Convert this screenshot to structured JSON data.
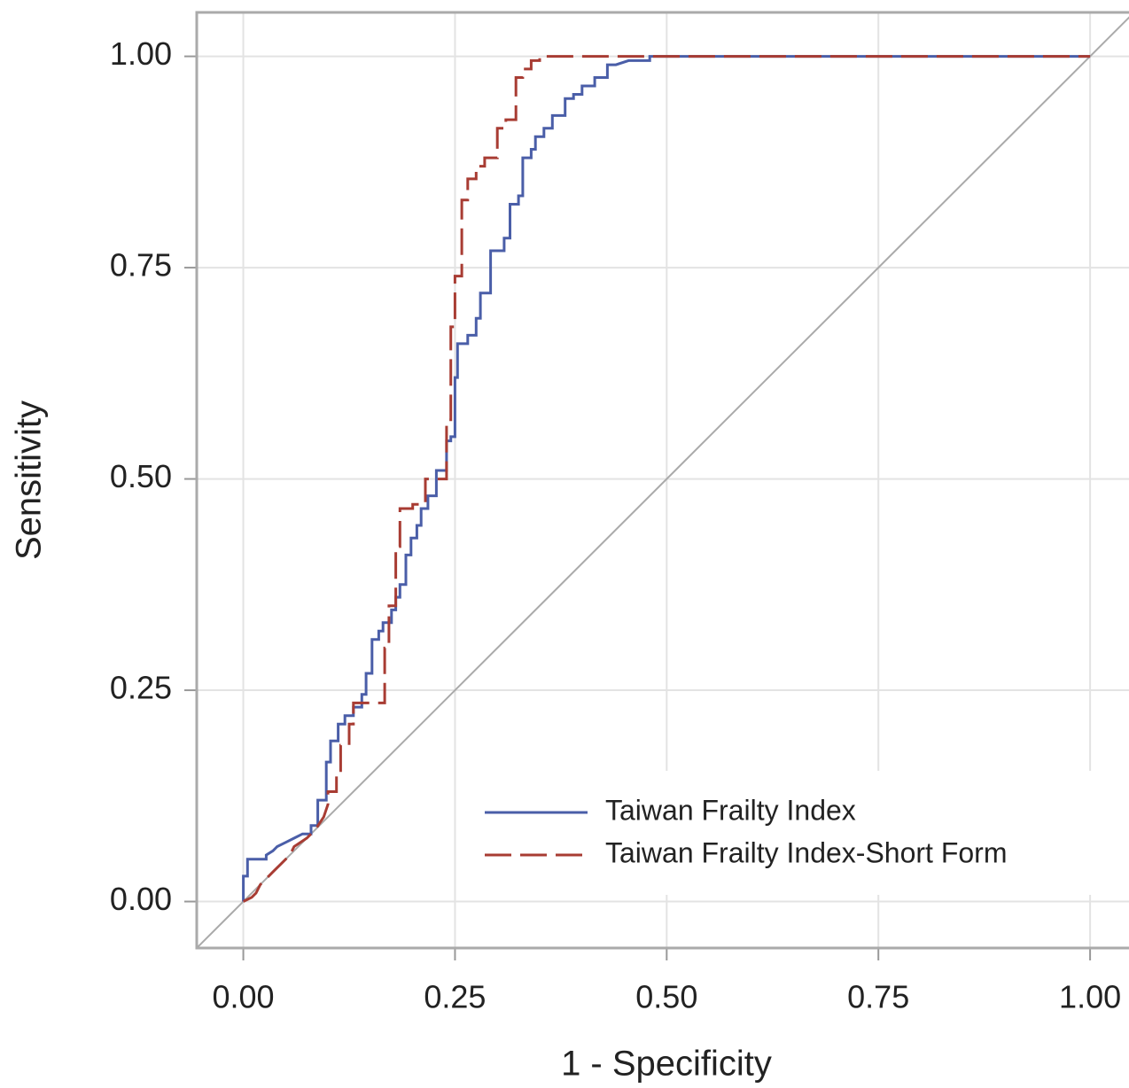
{
  "chart_data": {
    "type": "line",
    "xlabel": "1 - Specificity",
    "ylabel": "Sensitivity",
    "xlim": [
      -0.055,
      1.047
    ],
    "ylim": [
      -0.055,
      1.052
    ],
    "xticks": [
      {
        "value": 0,
        "label": "0.00"
      },
      {
        "value": 0.25,
        "label": "0.25"
      },
      {
        "value": 0.5,
        "label": "0.50"
      },
      {
        "value": 0.75,
        "label": "0.75"
      },
      {
        "value": 1,
        "label": "1.00"
      }
    ],
    "yticks": [
      {
        "value": 0,
        "label": "0.00"
      },
      {
        "value": 0.25,
        "label": "0.25"
      },
      {
        "value": 0.5,
        "label": "0.50"
      },
      {
        "value": 0.75,
        "label": "0.75"
      },
      {
        "value": 1,
        "label": "1.00"
      }
    ],
    "grid": true,
    "diagonal": true,
    "legend": "lower right",
    "series": [
      {
        "name": "Taiwan Frailty Index",
        "color": "#4a5ea8",
        "dash": "solid",
        "x": [
          0,
          0,
          0.005,
          0.005,
          0.027,
          0.027,
          0.035,
          0.04,
          0.05,
          0.06,
          0.07,
          0.08,
          0.08,
          0.088,
          0.088,
          0.098,
          0.098,
          0.103,
          0.103,
          0.112,
          0.112,
          0.12,
          0.12,
          0.13,
          0.13,
          0.14,
          0.14,
          0.145,
          0.145,
          0.152,
          0.152,
          0.16,
          0.16,
          0.165,
          0.165,
          0.175,
          0.175,
          0.18,
          0.18,
          0.185,
          0.185,
          0.192,
          0.192,
          0.198,
          0.198,
          0.205,
          0.205,
          0.21,
          0.21,
          0.218,
          0.218,
          0.228,
          0.228,
          0.24,
          0.24,
          0.245,
          0.245,
          0.25,
          0.25,
          0.253,
          0.253,
          0.265,
          0.265,
          0.275,
          0.275,
          0.28,
          0.28,
          0.292,
          0.292,
          0.308,
          0.308,
          0.315,
          0.315,
          0.325,
          0.325,
          0.33,
          0.33,
          0.34,
          0.34,
          0.345,
          0.345,
          0.355,
          0.355,
          0.365,
          0.365,
          0.38,
          0.38,
          0.39,
          0.39,
          0.4,
          0.4,
          0.415,
          0.415,
          0.43,
          0.43,
          0.44,
          0.455,
          0.48,
          0.48,
          1
        ],
        "values": [
          0,
          0.03,
          0.03,
          0.05,
          0.05,
          0.055,
          0.06,
          0.065,
          0.07,
          0.075,
          0.08,
          0.08,
          0.09,
          0.09,
          0.12,
          0.12,
          0.165,
          0.165,
          0.19,
          0.19,
          0.21,
          0.21,
          0.22,
          0.22,
          0.23,
          0.23,
          0.245,
          0.245,
          0.27,
          0.27,
          0.31,
          0.31,
          0.32,
          0.32,
          0.33,
          0.33,
          0.345,
          0.345,
          0.36,
          0.36,
          0.375,
          0.375,
          0.41,
          0.41,
          0.43,
          0.43,
          0.445,
          0.445,
          0.465,
          0.465,
          0.48,
          0.48,
          0.51,
          0.51,
          0.545,
          0.545,
          0.55,
          0.55,
          0.62,
          0.62,
          0.66,
          0.66,
          0.67,
          0.67,
          0.69,
          0.69,
          0.72,
          0.72,
          0.77,
          0.77,
          0.785,
          0.785,
          0.825,
          0.825,
          0.835,
          0.835,
          0.88,
          0.88,
          0.89,
          0.89,
          0.905,
          0.905,
          0.915,
          0.915,
          0.93,
          0.93,
          0.95,
          0.95,
          0.955,
          0.955,
          0.965,
          0.965,
          0.975,
          0.975,
          0.99,
          0.99,
          0.995,
          0.995,
          1,
          1
        ]
      },
      {
        "name": "Taiwan Frailty Index-Short Form",
        "color": "#a83c33",
        "dash": "dashed",
        "x": [
          0,
          0.01,
          0.015,
          0.02,
          0.03,
          0.035,
          0.045,
          0.055,
          0.06,
          0.075,
          0.085,
          0.095,
          0.1,
          0.1,
          0.11,
          0.11,
          0.115,
          0.115,
          0.125,
          0.125,
          0.13,
          0.13,
          0.167,
          0.167,
          0.172,
          0.172,
          0.18,
          0.18,
          0.185,
          0.185,
          0.2,
          0.2,
          0.215,
          0.215,
          0.24,
          0.24,
          0.245,
          0.245,
          0.25,
          0.25,
          0.258,
          0.258,
          0.265,
          0.265,
          0.275,
          0.275,
          0.285,
          0.285,
          0.3,
          0.3,
          0.31,
          0.31,
          0.322,
          0.322,
          0.33,
          0.33,
          0.34,
          0.34,
          0.35,
          0.35,
          1
        ],
        "values": [
          0,
          0.005,
          0.01,
          0.02,
          0.03,
          0.035,
          0.045,
          0.055,
          0.065,
          0.075,
          0.085,
          0.1,
          0.115,
          0.13,
          0.13,
          0.155,
          0.155,
          0.185,
          0.185,
          0.21,
          0.21,
          0.235,
          0.235,
          0.3,
          0.3,
          0.35,
          0.35,
          0.42,
          0.42,
          0.465,
          0.465,
          0.47,
          0.47,
          0.5,
          0.5,
          0.57,
          0.57,
          0.68,
          0.68,
          0.74,
          0.74,
          0.83,
          0.83,
          0.855,
          0.855,
          0.87,
          0.87,
          0.88,
          0.88,
          0.915,
          0.915,
          0.925,
          0.925,
          0.975,
          0.975,
          0.985,
          0.985,
          0.995,
          0.995,
          1,
          1
        ]
      }
    ]
  }
}
